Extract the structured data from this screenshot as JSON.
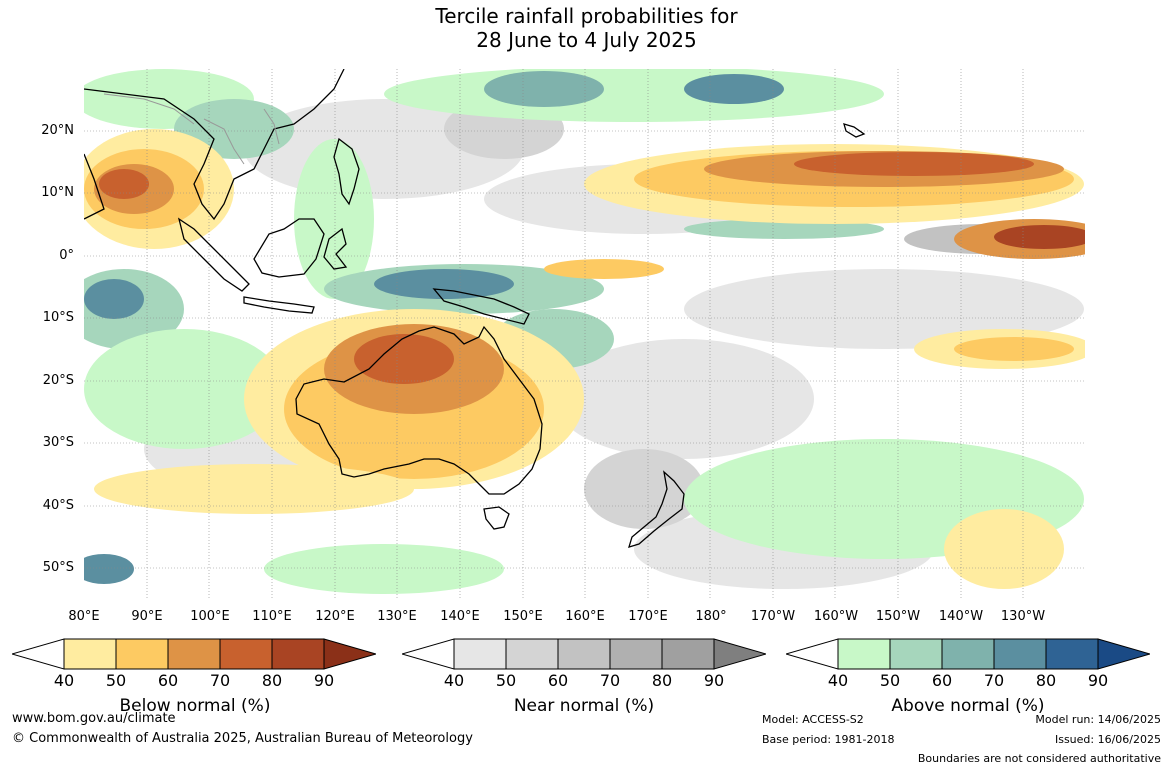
{
  "title_line1": "Tercile rainfall probabilities for",
  "title_line2": "28 June to 4 July 2025",
  "lat_labels": [
    "20°N",
    "10°N",
    "0°",
    "10°S",
    "20°S",
    "30°S",
    "40°S",
    "50°S"
  ],
  "lon_labels": [
    "80°E",
    "90°E",
    "100°E",
    "110°E",
    "120°E",
    "130°E",
    "140°E",
    "150°E",
    "160°E",
    "170°E",
    "180°",
    "170°W",
    "160°W",
    "150°W",
    "140°W",
    "130°W"
  ],
  "legends": [
    {
      "title": "Below normal (%)",
      "ticks": [
        "40",
        "50",
        "60",
        "70",
        "80",
        "90"
      ],
      "colors": [
        "#ffffff",
        "#ffeca0",
        "#fdca62",
        "#de9346",
        "#c8612e",
        "#a94423",
        "#8b3018"
      ]
    },
    {
      "title": "Near normal (%)",
      "ticks": [
        "40",
        "50",
        "60",
        "70",
        "80",
        "90"
      ],
      "colors": [
        "#ffffff",
        "#e6e6e6",
        "#d4d4d4",
        "#c2c2c2",
        "#b0b0b0",
        "#a0a0a0",
        "#7f7f7f"
      ]
    },
    {
      "title": "Above normal (%)",
      "ticks": [
        "40",
        "50",
        "60",
        "70",
        "80",
        "90"
      ],
      "colors": [
        "#ffffff",
        "#c8f8c8",
        "#a6d6bc",
        "#7fb2ac",
        "#5b8fa0",
        "#2f6394",
        "#1a4a85"
      ]
    }
  ],
  "footer": {
    "website": "www.bom.gov.au/climate",
    "copyright": "© Commonwealth of Australia 2025, Australian Bureau of Meteorology",
    "model": "Model: ACCESS-S2",
    "base_period": "Base period: 1981-2018",
    "model_run": "Model run: 14/06/2025",
    "issued": "Issued: 16/06/2025",
    "disclaimer": "Boundaries are not considered authoritative"
  }
}
